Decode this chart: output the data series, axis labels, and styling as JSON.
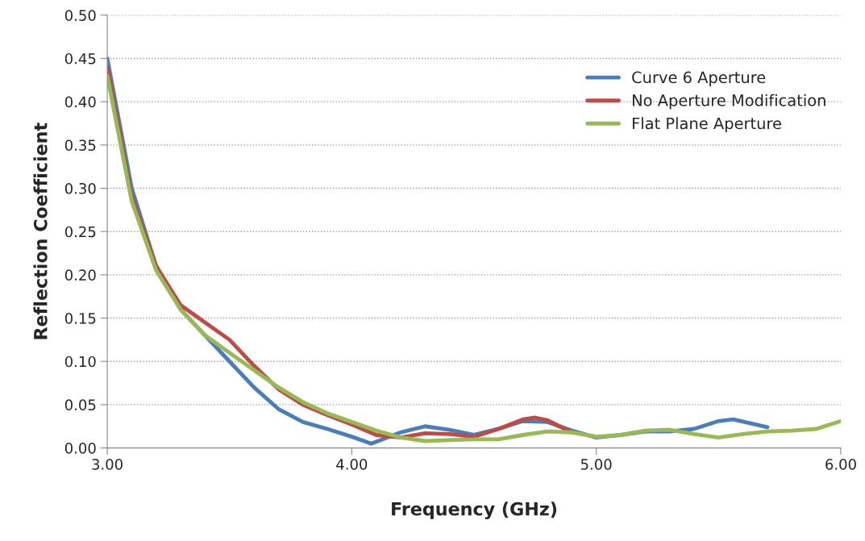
{
  "chart_data": {
    "type": "line",
    "xlabel": "Frequency (GHz)",
    "ylabel": "Reflection Coefficient",
    "xlim": [
      3,
      6
    ],
    "xticks": [
      {
        "value": 3,
        "label": "3.00"
      },
      {
        "value": 4,
        "label": "4.00"
      },
      {
        "value": 5,
        "label": "5.00"
      },
      {
        "value": 6,
        "label": "6.00"
      }
    ],
    "ylim": [
      0,
      0.5
    ],
    "yticks": [
      {
        "value": 0,
        "label": "0.00"
      },
      {
        "value": 0.05,
        "label": "0.05"
      },
      {
        "value": 0.1,
        "label": "0.10"
      },
      {
        "value": 0.15,
        "label": "0.15"
      },
      {
        "value": 0.2,
        "label": "0.20"
      },
      {
        "value": 0.25,
        "label": "0.25"
      },
      {
        "value": 0.3,
        "label": "0.30"
      },
      {
        "value": 0.35,
        "label": "0.35"
      },
      {
        "value": 0.4,
        "label": "0.40"
      },
      {
        "value": 0.45,
        "label": "0.45"
      },
      {
        "value": 0.5,
        "label": "0.50"
      }
    ],
    "grid": "y",
    "legend": "right",
    "marker": "none",
    "line_style": "solid",
    "series": [
      {
        "name": "Curve 6 Aperture",
        "color": "#4a7ebb",
        "x": [
          3.0,
          3.1,
          3.2,
          3.3,
          3.4,
          3.5,
          3.6,
          3.7,
          3.8,
          3.9,
          4.0,
          4.08,
          4.2,
          4.3,
          4.4,
          4.5,
          4.6,
          4.7,
          4.8,
          4.9,
          5.0,
          5.1,
          5.2,
          5.3,
          5.4,
          5.5,
          5.56,
          5.7
        ],
        "values": [
          0.45,
          0.3,
          0.21,
          0.16,
          0.13,
          0.1,
          0.07,
          0.045,
          0.03,
          0.022,
          0.013,
          0.005,
          0.018,
          0.025,
          0.021,
          0.015,
          0.022,
          0.031,
          0.03,
          0.02,
          0.012,
          0.015,
          0.019,
          0.019,
          0.022,
          0.031,
          0.033,
          0.024
        ]
      },
      {
        "name": "No Aperture Modification",
        "color": "#be4b48",
        "x": [
          3.0,
          3.1,
          3.2,
          3.3,
          3.4,
          3.5,
          3.6,
          3.7,
          3.8,
          3.9,
          4.0,
          4.1,
          4.2,
          4.3,
          4.4,
          4.5,
          4.6,
          4.7,
          4.75,
          4.8,
          4.9
        ],
        "values": [
          0.44,
          0.29,
          0.21,
          0.165,
          0.145,
          0.125,
          0.095,
          0.068,
          0.05,
          0.038,
          0.027,
          0.015,
          0.012,
          0.017,
          0.016,
          0.013,
          0.022,
          0.033,
          0.035,
          0.032,
          0.018
        ]
      },
      {
        "name": "Flat Plane Aperture",
        "color": "#98b954",
        "x": [
          3.0,
          3.1,
          3.2,
          3.3,
          3.4,
          3.5,
          3.6,
          3.7,
          3.8,
          3.9,
          4.0,
          4.1,
          4.2,
          4.3,
          4.4,
          4.5,
          4.6,
          4.7,
          4.8,
          4.9,
          5.0,
          5.1,
          5.2,
          5.3,
          5.4,
          5.5,
          5.6,
          5.7,
          5.8,
          5.9,
          6.0
        ],
        "values": [
          0.43,
          0.285,
          0.205,
          0.16,
          0.13,
          0.11,
          0.09,
          0.07,
          0.053,
          0.04,
          0.03,
          0.02,
          0.012,
          0.008,
          0.009,
          0.01,
          0.01,
          0.015,
          0.019,
          0.018,
          0.013,
          0.015,
          0.02,
          0.021,
          0.016,
          0.012,
          0.016,
          0.019,
          0.02,
          0.022,
          0.031
        ]
      }
    ]
  }
}
